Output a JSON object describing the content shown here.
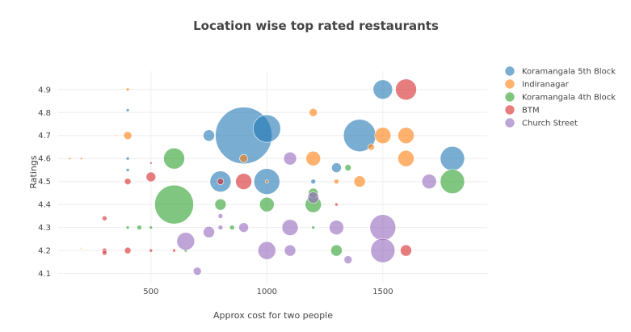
{
  "chart_data": {
    "type": "scatter",
    "title": "Location wise top rated restaurants",
    "xlabel": "Approx cost for two people",
    "ylabel": "Ratings",
    "xlim": [
      100,
      1950
    ],
    "ylim": [
      4.06,
      4.98
    ],
    "x_ticks": [
      500,
      1000,
      1500
    ],
    "x_tick_labels": [
      "500",
      "1000",
      "1500"
    ],
    "y_ticks": [
      4.1,
      4.2,
      4.3,
      4.4,
      4.5,
      4.6,
      4.7,
      4.8,
      4.9
    ],
    "y_tick_labels": [
      "4.1",
      "4.2",
      "4.3",
      "4.4",
      "4.5",
      "4.6",
      "4.7",
      "4.8",
      "4.9"
    ],
    "grid": true,
    "legend_position": "top-right",
    "marker_opacity": 0.6,
    "series": [
      {
        "name": "Koramangala 5th Block",
        "color": "#1f77b4",
        "points": [
          {
            "x": 400,
            "y": 4.81,
            "s": 2
          },
          {
            "x": 400,
            "y": 4.6,
            "s": 2
          },
          {
            "x": 400,
            "y": 4.55,
            "s": 2
          },
          {
            "x": 750,
            "y": 4.7,
            "s": 7
          },
          {
            "x": 800,
            "y": 4.5,
            "s": 13
          },
          {
            "x": 900,
            "y": 4.7,
            "s": 35
          },
          {
            "x": 1000,
            "y": 4.73,
            "s": 17
          },
          {
            "x": 1000,
            "y": 4.5,
            "s": 16
          },
          {
            "x": 1200,
            "y": 4.5,
            "s": 3
          },
          {
            "x": 1300,
            "y": 4.56,
            "s": 6
          },
          {
            "x": 1400,
            "y": 4.7,
            "s": 20
          },
          {
            "x": 1500,
            "y": 4.9,
            "s": 12
          },
          {
            "x": 1800,
            "y": 4.6,
            "s": 15
          }
        ]
      },
      {
        "name": "Indiranagar",
        "color": "#ff7f0e",
        "points": [
          {
            "x": 400,
            "y": 4.9,
            "s": 2
          },
          {
            "x": 400,
            "y": 4.7,
            "s": 5
          },
          {
            "x": 150,
            "y": 4.6,
            "s": 1.5
          },
          {
            "x": 200,
            "y": 4.6,
            "s": 1.5
          },
          {
            "x": 350,
            "y": 4.7,
            "s": 1
          },
          {
            "x": 900,
            "y": 4.6,
            "s": 5
          },
          {
            "x": 1200,
            "y": 4.8,
            "s": 5
          },
          {
            "x": 1200,
            "y": 4.6,
            "s": 9
          },
          {
            "x": 1300,
            "y": 4.5,
            "s": 3
          },
          {
            "x": 1400,
            "y": 4.5,
            "s": 7
          },
          {
            "x": 1450,
            "y": 4.65,
            "s": 4
          },
          {
            "x": 1500,
            "y": 4.7,
            "s": 10
          },
          {
            "x": 1600,
            "y": 4.7,
            "s": 10
          },
          {
            "x": 1600,
            "y": 4.6,
            "s": 10
          },
          {
            "x": 1000,
            "y": 4.5,
            "s": 2
          },
          {
            "x": 200,
            "y": 4.21,
            "s": 1
          },
          {
            "x": 600,
            "y": 4.5,
            "s": 1
          }
        ]
      },
      {
        "name": "Koramangala 4th Block",
        "color": "#2ca02c",
        "points": [
          {
            "x": 400,
            "y": 4.3,
            "s": 2
          },
          {
            "x": 450,
            "y": 4.3,
            "s": 3
          },
          {
            "x": 500,
            "y": 4.3,
            "s": 2
          },
          {
            "x": 600,
            "y": 4.4,
            "s": 24
          },
          {
            "x": 600,
            "y": 4.6,
            "s": 13
          },
          {
            "x": 800,
            "y": 4.4,
            "s": 7
          },
          {
            "x": 850,
            "y": 4.3,
            "s": 3
          },
          {
            "x": 1000,
            "y": 4.4,
            "s": 9
          },
          {
            "x": 1200,
            "y": 4.4,
            "s": 10
          },
          {
            "x": 1200,
            "y": 4.45,
            "s": 6
          },
          {
            "x": 1200,
            "y": 4.3,
            "s": 2
          },
          {
            "x": 1300,
            "y": 4.2,
            "s": 7
          },
          {
            "x": 1350,
            "y": 4.56,
            "s": 4
          },
          {
            "x": 1800,
            "y": 4.5,
            "s": 15
          },
          {
            "x": 650,
            "y": 4.2,
            "s": 2
          }
        ]
      },
      {
        "name": "BTM",
        "color": "#d62728",
        "points": [
          {
            "x": 300,
            "y": 4.34,
            "s": 3
          },
          {
            "x": 300,
            "y": 4.2,
            "s": 3
          },
          {
            "x": 300,
            "y": 4.19,
            "s": 3
          },
          {
            "x": 400,
            "y": 4.5,
            "s": 4
          },
          {
            "x": 400,
            "y": 4.2,
            "s": 4
          },
          {
            "x": 500,
            "y": 4.52,
            "s": 6
          },
          {
            "x": 500,
            "y": 4.2,
            "s": 2
          },
          {
            "x": 500,
            "y": 4.58,
            "s": 1.5
          },
          {
            "x": 600,
            "y": 4.2,
            "s": 2
          },
          {
            "x": 800,
            "y": 4.5,
            "s": 4
          },
          {
            "x": 900,
            "y": 4.5,
            "s": 10
          },
          {
            "x": 1300,
            "y": 4.4,
            "s": 2
          },
          {
            "x": 1600,
            "y": 4.9,
            "s": 13
          },
          {
            "x": 1600,
            "y": 4.2,
            "s": 7
          }
        ]
      },
      {
        "name": "Church Street",
        "color": "#9467bd",
        "points": [
          {
            "x": 650,
            "y": 4.24,
            "s": 11
          },
          {
            "x": 700,
            "y": 4.11,
            "s": 5
          },
          {
            "x": 750,
            "y": 4.28,
            "s": 7
          },
          {
            "x": 800,
            "y": 4.35,
            "s": 3
          },
          {
            "x": 800,
            "y": 4.3,
            "s": 3
          },
          {
            "x": 900,
            "y": 4.3,
            "s": 6
          },
          {
            "x": 1000,
            "y": 4.2,
            "s": 11
          },
          {
            "x": 1100,
            "y": 4.6,
            "s": 8
          },
          {
            "x": 1100,
            "y": 4.3,
            "s": 10
          },
          {
            "x": 1100,
            "y": 4.2,
            "s": 7
          },
          {
            "x": 1200,
            "y": 4.43,
            "s": 7
          },
          {
            "x": 1300,
            "y": 4.3,
            "s": 9
          },
          {
            "x": 1350,
            "y": 4.16,
            "s": 5
          },
          {
            "x": 1500,
            "y": 4.3,
            "s": 16
          },
          {
            "x": 1500,
            "y": 4.2,
            "s": 15
          },
          {
            "x": 1700,
            "y": 4.5,
            "s": 9
          }
        ]
      }
    ]
  }
}
